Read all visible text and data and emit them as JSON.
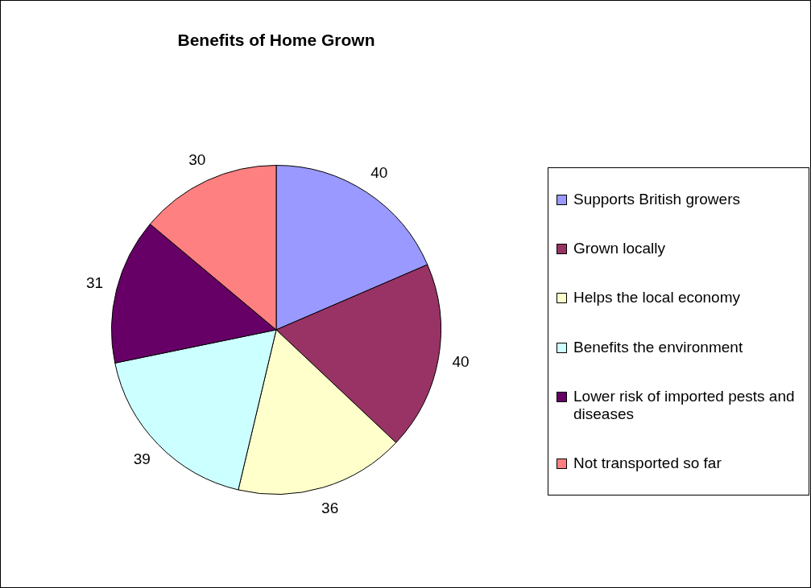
{
  "chart_data": {
    "type": "pie",
    "title": "Benefits of Home Grown",
    "categories": [
      "Supports British growers",
      "Grown locally",
      "Helps the local economy",
      "Benefits the environment",
      "Lower risk of imported pests and diseases",
      "Not transported so far"
    ],
    "values": [
      40,
      40,
      36,
      39,
      31,
      30
    ],
    "colors": [
      "#9999ff",
      "#993366",
      "#ffffcc",
      "#ccffff",
      "#660066",
      "#ff8080"
    ],
    "data_labels": true,
    "legend": "right"
  }
}
